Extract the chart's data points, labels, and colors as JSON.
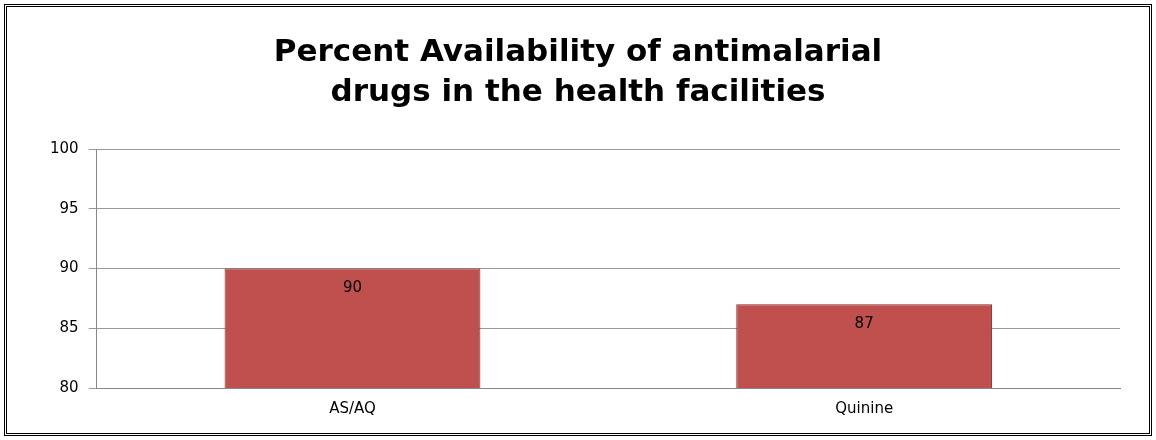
{
  "chart_data": {
    "type": "bar",
    "title": "Percent Availability of antimalarial drugs in the health facilities",
    "categories": [
      "AS/AQ",
      "Quinine"
    ],
    "values": [
      90,
      87
    ],
    "color": "#c0504d",
    "ylim": [
      80,
      100
    ],
    "yticks": [
      80,
      85,
      90,
      95,
      100
    ],
    "grid": "y",
    "data_labels": true
  }
}
